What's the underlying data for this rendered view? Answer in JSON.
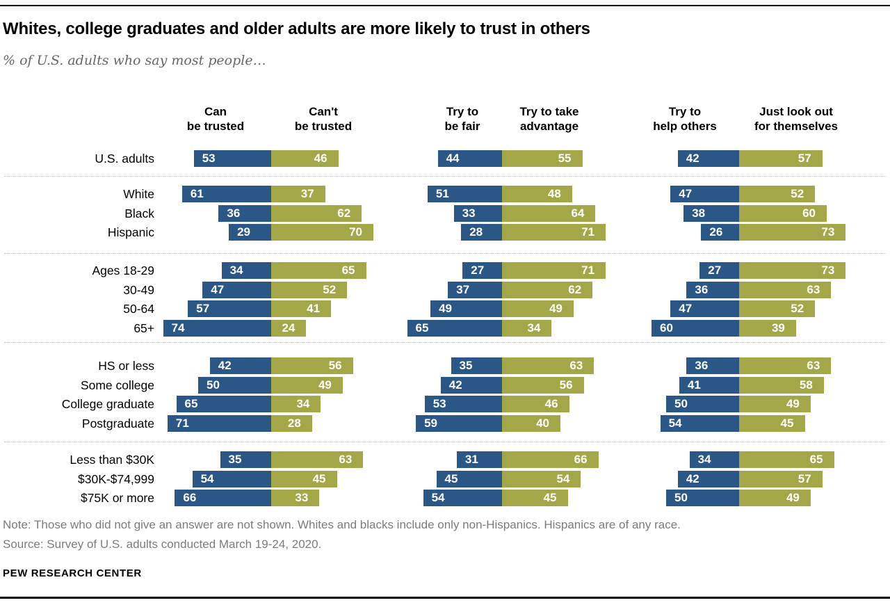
{
  "title": "Whites, college graduates and older adults are more likely to trust in others",
  "subtitle": "% of U.S. adults who say most people…",
  "note": "Note: Those who did not give an answer are not shown. Whites and blacks include only non-Hispanics. Hispanics are of any race.",
  "source": "Source: Survey of U.S. adults conducted March 19-24, 2020.",
  "brand": "PEW RESEARCH CENTER",
  "colors": {
    "bar_blue": "#2B5786",
    "bar_olive": "#A3A747",
    "note_gray": "#7b7b7b"
  },
  "chart_data": {
    "type": "bar",
    "variant": "paired-diverging-stacked-horizontal",
    "unit": "percent",
    "questions": [
      {
        "positive_lines": [
          "Can",
          "be trusted"
        ],
        "negative_lines": [
          "Can't",
          "be trusted"
        ]
      },
      {
        "positive_lines": [
          "Try to",
          "be fair"
        ],
        "negative_lines": [
          "Try to take",
          "advantage"
        ]
      },
      {
        "positive_lines": [
          "Try to",
          "help others"
        ],
        "negative_lines": [
          "Just look out",
          "for themselves"
        ]
      }
    ],
    "sections": [
      {
        "rows": [
          {
            "label": "U.S. adults",
            "pairs": [
              [
                53,
                46
              ],
              [
                44,
                55
              ],
              [
                42,
                57
              ]
            ]
          }
        ]
      },
      {
        "rows": [
          {
            "label": "White",
            "pairs": [
              [
                61,
                37
              ],
              [
                51,
                48
              ],
              [
                47,
                52
              ]
            ]
          },
          {
            "label": "Black",
            "pairs": [
              [
                36,
                62
              ],
              [
                33,
                64
              ],
              [
                38,
                60
              ]
            ]
          },
          {
            "label": "Hispanic",
            "pairs": [
              [
                29,
                70
              ],
              [
                28,
                71
              ],
              [
                26,
                73
              ]
            ]
          }
        ]
      },
      {
        "rows": [
          {
            "label": "Ages 18-29",
            "pairs": [
              [
                34,
                65
              ],
              [
                27,
                71
              ],
              [
                27,
                73
              ]
            ]
          },
          {
            "label": "30-49",
            "pairs": [
              [
                47,
                52
              ],
              [
                37,
                62
              ],
              [
                36,
                63
              ]
            ]
          },
          {
            "label": "50-64",
            "pairs": [
              [
                57,
                41
              ],
              [
                49,
                49
              ],
              [
                47,
                52
              ]
            ]
          },
          {
            "label": "65+",
            "pairs": [
              [
                74,
                24
              ],
              [
                65,
                34
              ],
              [
                60,
                39
              ]
            ]
          }
        ]
      },
      {
        "rows": [
          {
            "label": "HS or less",
            "pairs": [
              [
                42,
                56
              ],
              [
                35,
                63
              ],
              [
                36,
                63
              ]
            ]
          },
          {
            "label": "Some college",
            "pairs": [
              [
                50,
                49
              ],
              [
                42,
                56
              ],
              [
                41,
                58
              ]
            ]
          },
          {
            "label": "College graduate",
            "pairs": [
              [
                65,
                34
              ],
              [
                53,
                46
              ],
              [
                50,
                49
              ]
            ]
          },
          {
            "label": "Postgraduate",
            "pairs": [
              [
                71,
                28
              ],
              [
                59,
                40
              ],
              [
                54,
                45
              ]
            ]
          }
        ]
      },
      {
        "rows": [
          {
            "label": "Less than $30K",
            "pairs": [
              [
                35,
                63
              ],
              [
                31,
                66
              ],
              [
                34,
                65
              ]
            ]
          },
          {
            "label": "$30K-$74,999",
            "pairs": [
              [
                54,
                45
              ],
              [
                45,
                54
              ],
              [
                42,
                57
              ]
            ]
          },
          {
            "label": "$75K or more",
            "pairs": [
              [
                66,
                33
              ],
              [
                54,
                45
              ],
              [
                50,
                49
              ]
            ]
          }
        ]
      }
    ]
  }
}
